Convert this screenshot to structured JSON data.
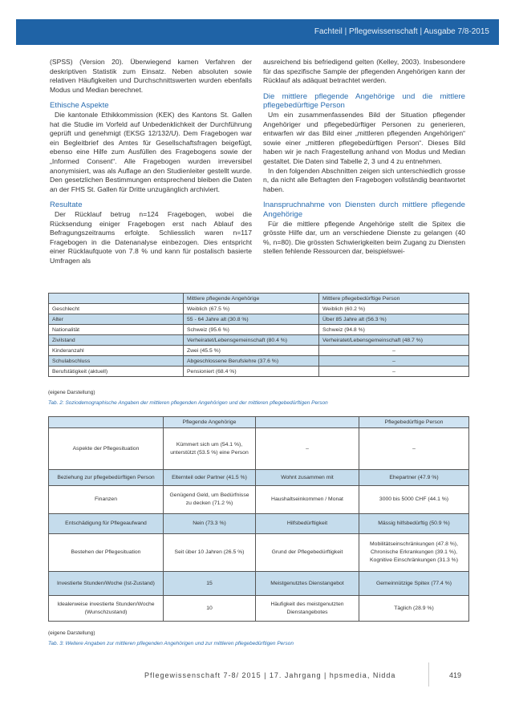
{
  "header": {
    "running_head": "Fachteil | Pflegewissenschaft | Ausgabe 7/8-2015"
  },
  "left": {
    "p0": "(SPSS) (Version 20). Überwiegend kamen Verfahren der deskriptiven Statistik zum Einsatz. Neben absoluten sowie relativen Häufigkeiten und Durchschnittswerten wurden ebenfalls Modus und Median berechnet.",
    "h1": "Ethische Aspekte",
    "p1": "Die kantonale Ethikkommission (KEK) des Kantons St. Gallen hat die Studie im Vorfeld auf Unbedenklichkeit der Durchführung geprüft und genehmigt (EKSG 12/132/U). Dem Fragebogen war ein Begleitbrief des Amtes für Gesellschaftsfragen beigefügt, ebenso eine Hilfe zum Ausfüllen des Fragebogens sowie der „Informed Consent“. Alle Fragebogen wurden irreversibel anonymisiert, was als Auflage an den Studienleiter gestellt wurde. Den gesetzlichen Bestimmungen entsprechend bleiben die Daten an der FHS St. Gallen für Dritte unzugänglich archiviert.",
    "h2": "Resultate",
    "p2": "Der Rücklauf betrug n=124 Fragebogen, wobei die Rücksendung einiger Fragebogen erst nach Ablauf des Befragungszeitraums erfolgte. Schliesslich waren n=117 Fragebogen in die Datenanalyse einbezogen. Dies entspricht einer Rücklaufquote von 7.8 % und kann für postalisch basierte Umfragen als"
  },
  "right": {
    "p0": "ausreichend bis befriedigend gelten (Kelley, 2003). Insbesondere für das spezifische Sample der pflegenden Angehörigen kann der Rücklauf als adäquat betrachtet werden.",
    "h1": "Die mittlere pflegende Angehörige und die mittlere pflegebedürftige Person",
    "p1": "Um ein zusammenfassendes Bild der Situation pflegender Angehöriger und pflegebedürftiger Personen zu generieren, entwarfen wir das Bild einer „mittleren pflegenden Angehörigen“ sowie einer „mittleren pflegebedürftigen Person“. Dieses Bild haben wir je nach Fragestellung anhand von Modus und Median gestaltet. Die Daten sind Tabelle 2, 3 und 4 zu entnehmen.",
    "p2": "In den folgenden Abschnitten zeigen sich unterschiedlich grosse n, da nicht alle Befragten den Fragebogen vollständig beantwortet haben.",
    "h2": "Inanspruchnahme von Diensten durch mittlere pflegende Angehörige",
    "p3": "Für die mittlere pflegende Angehörige stellt die Spitex die grösste Hilfe dar, um an verschiedene Dienste zu gelangen (40 %, n=80). Die grössten Schwierigkeiten beim Zugang zu Diensten stellen fehlende Ressourcen dar, beispielswei-"
  },
  "table2": {
    "headers": [
      "",
      "Mittlere pflegende Angehörige",
      "Mittlere pflegebedürftige Person"
    ],
    "rows": [
      [
        "Geschlecht",
        "Weiblich (67.5 %)",
        "Weiblich (60.2 %)"
      ],
      [
        "Alter",
        "55 - 64 Jahre alt (30.8 %)",
        "Über 85 Jahre alt (56.3 %)"
      ],
      [
        "Nationalität",
        "Schweiz (95.6 %)",
        "Schweiz (94.8 %)"
      ],
      [
        "Zivilstand",
        "Verheiratet/Lebensgemeinschaft (80.4 %)",
        "Verheiratet/Lebensgemeinschaft (48.7 %)"
      ],
      [
        "Kinderanzahl",
        "Zwei (45.5 %)",
        "–"
      ],
      [
        "Schulabschluss",
        "Abgeschlossene Berufslehre (37.6 %)",
        "–"
      ],
      [
        "Berufstätigkeit (aktuell)",
        "Pensioniert (68.4 %)",
        "–"
      ]
    ],
    "note": "(eigene Darstellung)",
    "caption": "Tab. 2: Soziodemographische Angaben der mittleren pflegenden Angehörigen und der mittleren pflegebedürftigen Person"
  },
  "table3": {
    "headers": [
      "",
      "Pflegende Angehörige",
      "",
      "Pflegebedürftige Person"
    ],
    "rows": [
      [
        "Aspekte der Pflegesituation",
        "Kümmert sich um (54.1 %), unterstützt (53.5 %) eine Person",
        "–",
        "–"
      ],
      [
        "Beziehung zur pflegebedürftigen Person",
        "Elternteil oder Partner (41.5 %)",
        "Wohnt zusammen mit",
        "Ehepartner (47.9 %)"
      ],
      [
        "Finanzen",
        "Genügend Geld, um Bedürfnisse zu decken (71.2 %)",
        "Haushaltseinkommen / Monat",
        "3000 bis 5000 CHF (44.1 %)"
      ],
      [
        "Entschädigung für Pflegeaufwand",
        "Nein (73.3 %)",
        "Hilfsbedürftigkeit",
        "Mässig hilfsbedürftig (50.9 %)"
      ],
      [
        "Bestehen der Pflegesituation",
        "Seit über 10 Jahren (26.5 %)",
        "Grund der Pflegebedürftigkeit",
        "Mobilitätseinschränkungen (47.8 %), Chronische Erkrankungen (39.1 %), Kognitive Einschränkungen (31.3 %)"
      ],
      [
        "Investierte Stunden/Woche (Ist-Zustand)",
        "15",
        "Meistgenutztes Dienstangebot",
        "Gemeinnützige Spitex (77.4 %)"
      ],
      [
        "Idealerweise investierte Stunden/Woche (Wunschzustand)",
        "10",
        "Häufigkeit des meistgenutzten Dienstangebotes",
        "Täglich (28.9 %)"
      ]
    ],
    "note": "(eigene Darstellung)",
    "caption": "Tab. 3: Weitere Angaben zur mittleren pflegenden Angehörigen und zur mittleren pflegebedürftigen Person"
  },
  "footer": {
    "text": "Pflegewissenschaft 7-8/ 2015 | 17. Jahrgang | hpsmedia, Nidda",
    "page": "419"
  },
  "colors": {
    "header_bar": "#1f63a6",
    "heading": "#2a6db0",
    "row_shade": "#c5dcec"
  }
}
